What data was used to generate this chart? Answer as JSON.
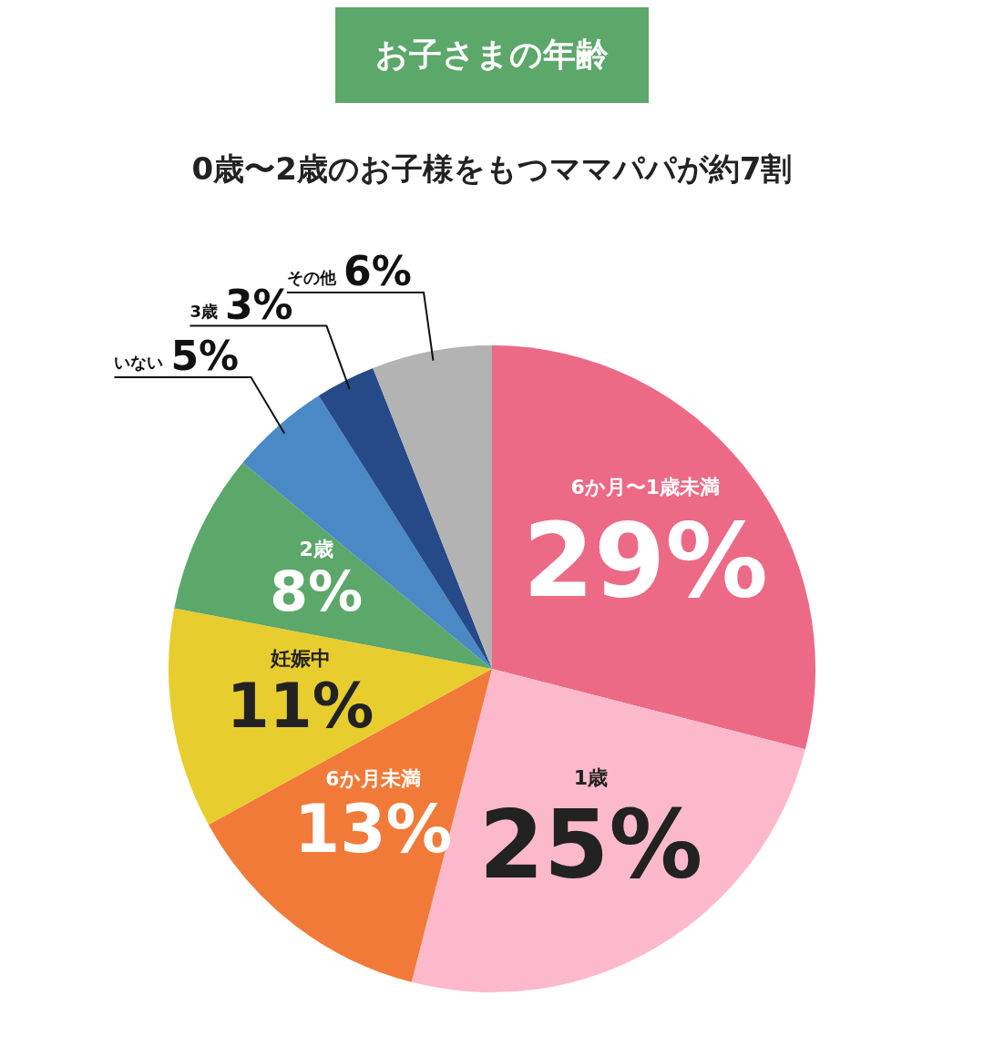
{
  "chart_data": {
    "type": "pie",
    "title": "お子さまの年齢",
    "subtitle": "0歳〜2歳のお子様をもつママパパが約7割",
    "categories": [
      "6か月〜1歳未満",
      "1歳",
      "6か月未満",
      "妊娠中",
      "2歳",
      "いない",
      "3歳",
      "その他"
    ],
    "values": [
      29,
      25,
      13,
      11,
      8,
      5,
      3,
      6
    ],
    "value_labels": [
      "29%",
      "25%",
      "13%",
      "11%",
      "8%",
      "5%",
      "3%",
      "6%"
    ],
    "colors": [
      "#ec6a86",
      "#fdb9cc",
      "#f27a38",
      "#e8cd2e",
      "#5ca76a",
      "#4a89c5",
      "#264a87",
      "#b3b3b3"
    ],
    "legend": false
  }
}
